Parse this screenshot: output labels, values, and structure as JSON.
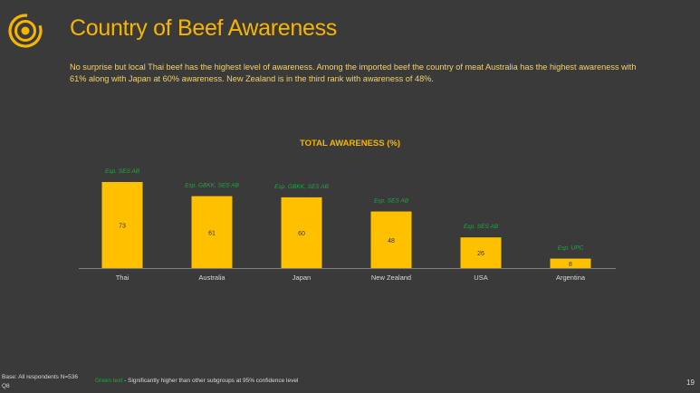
{
  "header": {
    "logo_icon": "concentric-circles-logo",
    "title": "Country of Beef Awareness",
    "summary": "No surprise but local Thai beef has the highest level of awareness. Among the imported beef the country of meat Australia has the highest awareness with 61% along with Japan at 60% awareness. New Zealand is in the third rank with awareness of 48%."
  },
  "chart_data": {
    "type": "bar",
    "title": "TOTAL AWARENESS (%)",
    "categories": [
      "Thai",
      "Australia",
      "Japan",
      "New Zealand",
      "USA",
      "Argentina"
    ],
    "values": [
      73,
      61,
      60,
      48,
      26,
      8
    ],
    "annotations": [
      "Esp. SES AB",
      "Esp. GBKK, SES AB",
      "Esp. GBKK, SES AB",
      "Esp. SES AB",
      "Esp. SES AB",
      "Esp. UPC"
    ],
    "xlabel": "",
    "ylabel": "",
    "ylim": [
      0,
      73
    ],
    "grid": false,
    "legend": "none",
    "colors": {
      "bar": "#ffc000",
      "annotation": "#1fa843",
      "label": "#d9d9d9",
      "axis": "#808080"
    }
  },
  "footer": {
    "base_line1": "Base: All respondents N=536",
    "base_line2": "Q8",
    "legend_green": "Green text",
    "legend_rest": " - Significantly higher than other subgroups at 95% confidence level",
    "page_number": "19"
  }
}
